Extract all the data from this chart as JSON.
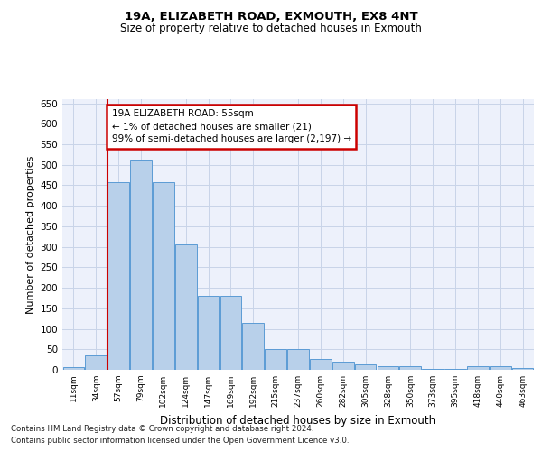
{
  "title1": "19A, ELIZABETH ROAD, EXMOUTH, EX8 4NT",
  "title2": "Size of property relative to detached houses in Exmouth",
  "xlabel": "Distribution of detached houses by size in Exmouth",
  "ylabel": "Number of detached properties",
  "categories": [
    "11sqm",
    "34sqm",
    "57sqm",
    "79sqm",
    "102sqm",
    "124sqm",
    "147sqm",
    "169sqm",
    "192sqm",
    "215sqm",
    "237sqm",
    "260sqm",
    "282sqm",
    "305sqm",
    "328sqm",
    "350sqm",
    "373sqm",
    "395sqm",
    "418sqm",
    "440sqm",
    "463sqm"
  ],
  "values": [
    7,
    35,
    458,
    512,
    458,
    305,
    180,
    180,
    115,
    50,
    50,
    27,
    20,
    13,
    9,
    9,
    3,
    3,
    8,
    8,
    4
  ],
  "bar_color": "#b8d0ea",
  "bar_edge_color": "#5b9bd5",
  "annotation_title": "19A ELIZABETH ROAD: 55sqm",
  "annotation_line1": "← 1% of detached houses are smaller (21)",
  "annotation_line2": "99% of semi-detached houses are larger (2,197) →",
  "annotation_box_color": "#ffffff",
  "annotation_box_edge": "#cc0000",
  "vline_color": "#cc0000",
  "vline_x_index": 2,
  "ylim": [
    0,
    660
  ],
  "yticks": [
    0,
    50,
    100,
    150,
    200,
    250,
    300,
    350,
    400,
    450,
    500,
    550,
    600,
    650
  ],
  "grid_color": "#c8d4e8",
  "background_color": "#edf1fb",
  "footer1": "Contains HM Land Registry data © Crown copyright and database right 2024.",
  "footer2": "Contains public sector information licensed under the Open Government Licence v3.0."
}
